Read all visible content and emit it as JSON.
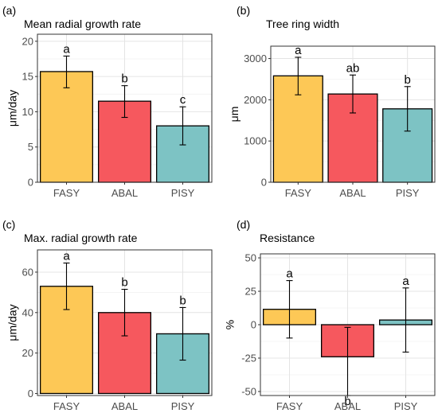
{
  "chart_data": [
    {
      "type": "bar",
      "panel_tag": "(a)",
      "title": "Mean radial growth rate",
      "ylabel": "μm/day",
      "categories": [
        "FASY",
        "ABAL",
        "PISY"
      ],
      "values": [
        15.7,
        11.5,
        8.0
      ],
      "error_low": [
        13.4,
        9.2,
        5.3
      ],
      "error_high": [
        17.9,
        13.7,
        10.7
      ],
      "sig_letters": [
        "a",
        "b",
        "c"
      ],
      "ylim": [
        0,
        21
      ],
      "yticks": [
        0,
        5,
        10,
        15,
        20
      ],
      "colors": [
        "#FDC856",
        "#F6585E",
        "#7DC3C4"
      ],
      "grid": true
    },
    {
      "type": "bar",
      "panel_tag": "(b)",
      "title": "Tree ring width",
      "ylabel": "μm",
      "categories": [
        "FASY",
        "ABAL",
        "PISY"
      ],
      "values": [
        2580,
        2140,
        1780
      ],
      "error_low": [
        2120,
        1680,
        1240
      ],
      "error_high": [
        3030,
        2600,
        2320
      ],
      "sig_letters": [
        "a",
        "ab",
        "b"
      ],
      "ylim": [
        0,
        3300
      ],
      "yticks": [
        0,
        1000,
        2000,
        3000
      ],
      "colors": [
        "#FDC856",
        "#F6585E",
        "#7DC3C4"
      ],
      "grid": true
    },
    {
      "type": "bar",
      "panel_tag": "(c)",
      "title": "Max. radial growth rate",
      "ylabel": "μm/day",
      "categories": [
        "FASY",
        "ABAL",
        "PISY"
      ],
      "values": [
        53,
        40,
        29.5
      ],
      "error_low": [
        41.5,
        28.5,
        16.5
      ],
      "error_high": [
        64.5,
        51.5,
        42.5
      ],
      "sig_letters": [
        "a",
        "b",
        "b"
      ],
      "ylim": [
        -1,
        71
      ],
      "yticks": [
        0,
        20,
        40,
        60
      ],
      "colors": [
        "#FDC856",
        "#F6585E",
        "#7DC3C4"
      ],
      "grid": true
    },
    {
      "type": "bar",
      "panel_tag": "(d)",
      "title": "Resistance",
      "ylabel": "%",
      "categories": [
        "FASY",
        "ABAL",
        "PISY"
      ],
      "values": [
        11.5,
        -24,
        3.5
      ],
      "error_low": [
        -10,
        -53,
        -20.5
      ],
      "error_high": [
        33,
        -2,
        27.5
      ],
      "sig_letters": [
        "a",
        "b",
        "a"
      ],
      "ylim": [
        -53,
        53
      ],
      "yticks": [
        -50,
        -25,
        0,
        25,
        50
      ],
      "colors": [
        "#FDC856",
        "#F6585E",
        "#7DC3C4"
      ],
      "grid": true
    }
  ]
}
